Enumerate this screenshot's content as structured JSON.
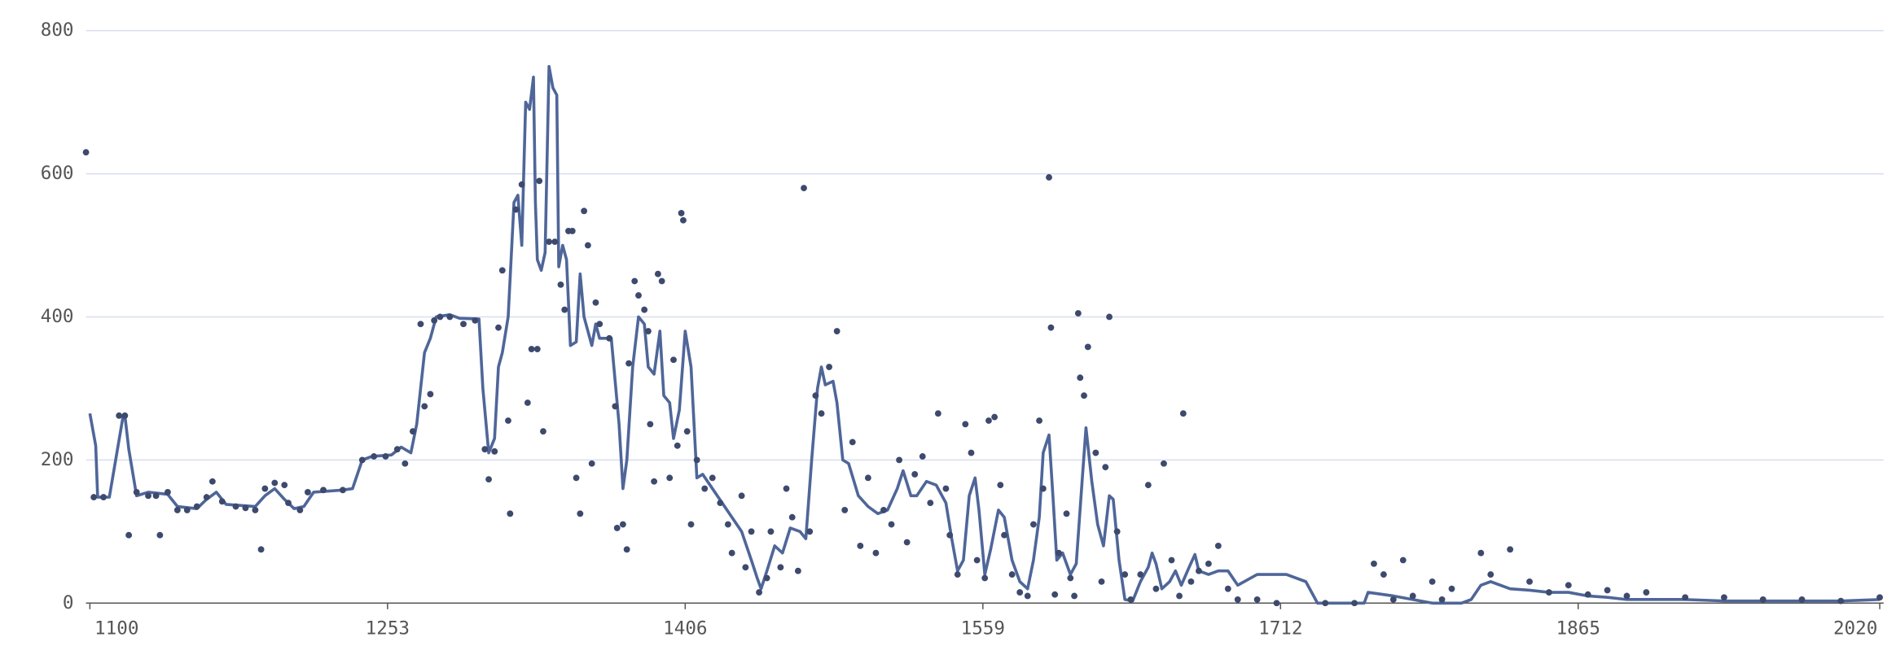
{
  "chart_data": {
    "type": "line",
    "xlim": [
      1098,
      2022
    ],
    "xticks": [
      1100,
      1253,
      1406,
      1559,
      1712,
      1865,
      2020
    ],
    "ylim": [
      0,
      800
    ],
    "yticks": [
      0,
      200,
      400,
      600,
      800
    ],
    "grid": true,
    "series": [
      {
        "type": "line",
        "color": "#4f6699",
        "x": [
          1100,
          1103,
          1104,
          1110,
          1112,
          1117,
          1118,
          1120,
          1124,
          1130,
          1140,
          1145,
          1155,
          1160,
          1165,
          1170,
          1180,
          1185,
          1190,
          1195,
          1200,
          1205,
          1210,
          1215,
          1225,
          1230,
          1235,
          1240,
          1245,
          1255,
          1260,
          1265,
          1268,
          1272,
          1275,
          1278,
          1285,
          1290,
          1300,
          1302,
          1305,
          1308,
          1310,
          1312,
          1315,
          1318,
          1320,
          1322,
          1324,
          1326,
          1328,
          1329,
          1330,
          1332,
          1334,
          1336,
          1338,
          1340,
          1341,
          1343,
          1345,
          1347,
          1350,
          1352,
          1354,
          1356,
          1358,
          1360,
          1362,
          1368,
          1372,
          1374,
          1376,
          1379,
          1382,
          1385,
          1387,
          1390,
          1393,
          1395,
          1398,
          1400,
          1403,
          1406,
          1409,
          1412,
          1415,
          1420,
          1425,
          1430,
          1435,
          1440,
          1443,
          1445,
          1448,
          1452,
          1456,
          1460,
          1465,
          1468,
          1471,
          1474,
          1476,
          1478,
          1482,
          1484,
          1487,
          1490,
          1495,
          1500,
          1505,
          1510,
          1515,
          1518,
          1522,
          1525,
          1530,
          1535,
          1540,
          1543,
          1546,
          1549,
          1552,
          1555,
          1557,
          1560,
          1563,
          1567,
          1570,
          1574,
          1578,
          1582,
          1585,
          1588,
          1590,
          1593,
          1595,
          1597,
          1600,
          1604,
          1607,
          1610,
          1612,
          1615,
          1618,
          1621,
          1624,
          1626,
          1629,
          1632,
          1636,
          1640,
          1644,
          1646,
          1648,
          1651,
          1655,
          1658,
          1661,
          1665,
          1668,
          1670,
          1675,
          1680,
          1685,
          1690,
          1700,
          1715,
          1725,
          1731,
          1755,
          1757,
          1770,
          1780,
          1790,
          1805,
          1810,
          1815,
          1820,
          1830,
          1840,
          1850,
          1860,
          1870,
          1880,
          1890,
          1900,
          1920,
          1940,
          1960,
          1980,
          2000,
          2020
        ],
        "values": [
          265,
          220,
          148,
          148,
          180,
          260,
          262,
          215,
          150,
          155,
          152,
          135,
          132,
          145,
          155,
          138,
          136,
          135,
          150,
          160,
          145,
          132,
          135,
          155,
          157,
          158,
          160,
          200,
          205,
          207,
          218,
          210,
          250,
          350,
          370,
          400,
          403,
          398,
          397,
          300,
          210,
          230,
          330,
          350,
          400,
          560,
          570,
          500,
          700,
          690,
          735,
          560,
          480,
          465,
          490,
          750,
          720,
          710,
          470,
          500,
          480,
          360,
          365,
          460,
          400,
          380,
          360,
          390,
          370,
          370,
          250,
          160,
          200,
          330,
          400,
          390,
          330,
          320,
          380,
          290,
          280,
          230,
          270,
          380,
          330,
          175,
          180,
          160,
          140,
          120,
          100,
          60,
          35,
          20,
          45,
          80,
          70,
          105,
          100,
          90,
          200,
          300,
          330,
          305,
          310,
          280,
          200,
          195,
          150,
          135,
          125,
          130,
          160,
          185,
          150,
          150,
          170,
          165,
          140,
          90,
          45,
          60,
          150,
          175,
          130,
          40,
          75,
          130,
          120,
          60,
          30,
          20,
          60,
          120,
          210,
          235,
          150,
          60,
          70,
          40,
          55,
          170,
          245,
          170,
          110,
          80,
          150,
          145,
          60,
          5,
          3,
          30,
          50,
          70,
          55,
          20,
          30,
          45,
          25,
          50,
          68,
          45,
          40,
          45,
          45,
          25,
          40,
          40,
          30,
          0,
          0,
          15,
          10,
          5,
          0,
          0,
          5,
          25,
          30,
          20,
          18,
          15,
          15,
          10,
          8,
          5,
          5,
          5,
          3,
          3,
          3,
          3,
          5
        ]
      },
      {
        "type": "scatter",
        "color": "#3d4a6d",
        "x": [
          1098,
          1102,
          1107,
          1115,
          1118,
          1120,
          1124,
          1130,
          1134,
          1136,
          1140,
          1145,
          1150,
          1155,
          1160,
          1163,
          1168,
          1175,
          1180,
          1185,
          1188,
          1190,
          1195,
          1200,
          1202,
          1208,
          1212,
          1220,
          1230,
          1240,
          1246,
          1252,
          1258,
          1262,
          1266,
          1270,
          1272,
          1275,
          1277,
          1280,
          1285,
          1292,
          1298,
          1303,
          1305,
          1308,
          1310,
          1312,
          1315,
          1316,
          1319,
          1322,
          1325,
          1327,
          1330,
          1331,
          1333,
          1336,
          1339,
          1342,
          1344,
          1346,
          1348,
          1350,
          1352,
          1354,
          1356,
          1358,
          1360,
          1362,
          1367,
          1370,
          1371,
          1374,
          1376,
          1377,
          1380,
          1382,
          1385,
          1387,
          1388,
          1390,
          1392,
          1394,
          1398,
          1400,
          1402,
          1404,
          1405,
          1407,
          1409,
          1412,
          1416,
          1420,
          1424,
          1428,
          1430,
          1435,
          1437,
          1440,
          1444,
          1448,
          1450,
          1455,
          1458,
          1461,
          1464,
          1467,
          1470,
          1473,
          1476,
          1480,
          1484,
          1488,
          1492,
          1496,
          1500,
          1504,
          1508,
          1512,
          1516,
          1520,
          1524,
          1528,
          1532,
          1536,
          1540,
          1542,
          1546,
          1550,
          1553,
          1556,
          1560,
          1562,
          1565,
          1568,
          1570,
          1574,
          1578,
          1582,
          1585,
          1588,
          1590,
          1593,
          1594,
          1596,
          1598,
          1602,
          1604,
          1606,
          1608,
          1609,
          1611,
          1613,
          1617,
          1620,
          1622,
          1624,
          1628,
          1632,
          1635,
          1640,
          1644,
          1648,
          1652,
          1656,
          1660,
          1662,
          1666,
          1670,
          1675,
          1680,
          1685,
          1690,
          1700,
          1710,
          1735,
          1750,
          1760,
          1765,
          1770,
          1775,
          1780,
          1790,
          1795,
          1800,
          1815,
          1820,
          1830,
          1840,
          1850,
          1860,
          1870,
          1880,
          1890,
          1900,
          1920,
          1940,
          1960,
          1980,
          2000,
          2020
        ],
        "values": [
          630,
          148,
          148,
          262,
          262,
          95,
          155,
          150,
          150,
          95,
          155,
          130,
          130,
          135,
          148,
          170,
          142,
          135,
          133,
          130,
          75,
          160,
          168,
          165,
          140,
          130,
          155,
          158,
          158,
          200,
          205,
          205,
          215,
          195,
          240,
          390,
          275,
          292,
          395,
          400,
          400,
          390,
          395,
          215,
          173,
          212,
          385,
          465,
          255,
          125,
          550,
          585,
          280,
          355,
          355,
          590,
          240,
          505,
          505,
          445,
          410,
          520,
          520,
          175,
          125,
          548,
          500,
          195,
          420,
          390,
          370,
          275,
          105,
          110,
          75,
          335,
          450,
          430,
          410,
          380,
          250,
          170,
          460,
          450,
          175,
          340,
          220,
          545,
          535,
          240,
          110,
          200,
          160,
          175,
          140,
          110,
          70,
          150,
          50,
          100,
          15,
          35,
          100,
          50,
          160,
          120,
          45,
          580,
          100,
          290,
          265,
          330,
          380,
          130,
          225,
          80,
          175,
          70,
          130,
          110,
          200,
          85,
          180,
          205,
          140,
          265,
          160,
          95,
          40,
          250,
          210,
          60,
          35,
          255,
          260,
          165,
          95,
          40,
          15,
          10,
          110,
          255,
          160,
          595,
          385,
          12,
          70,
          125,
          35,
          10,
          405,
          315,
          290,
          358,
          210,
          30,
          190,
          400,
          100,
          40,
          5,
          40,
          165,
          20,
          195,
          60,
          10,
          265,
          30,
          45,
          55,
          80,
          20,
          5,
          5,
          0,
          0,
          0,
          55,
          40,
          5,
          60,
          10,
          30,
          5,
          20,
          70,
          40,
          75,
          30,
          15,
          25,
          12,
          18,
          10,
          15,
          8,
          8,
          5,
          5,
          3,
          8
        ]
      }
    ]
  }
}
